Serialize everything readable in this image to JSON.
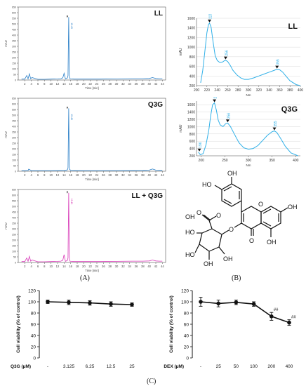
{
  "figure": {
    "panel_labels": {
      "A": "(A)",
      "B": "(B)",
      "C": "(C)"
    },
    "colors": {
      "hplc_trace": "#2a7fc8",
      "mix_trace": "#d83ab8",
      "uv_trace": "#2fb0e8",
      "axis": "#555555",
      "grid": "#d8d8d8",
      "bar": "#111111"
    }
  },
  "chart_data": [
    {
      "type": "line",
      "panel": "A",
      "title": "LL",
      "ylabel": "mAU",
      "xlabel": "Time [min]",
      "xlim": [
        0,
        45
      ],
      "ylim": [
        0,
        650
      ],
      "x_ticks": [
        "2",
        "4",
        "6",
        "8",
        "10",
        "12",
        "14",
        "16",
        "18",
        "20",
        "22",
        "24",
        "26",
        "28",
        "30",
        "32",
        "34",
        "36",
        "38",
        "40",
        "42",
        "44"
      ],
      "y_ticks": [
        "0",
        "50",
        "100",
        "150",
        "200",
        "250",
        "300",
        "350",
        "400",
        "450",
        "500",
        "550",
        "600",
        "650"
      ],
      "peak_label": "15.43",
      "series": [
        {
          "x": [
            1,
            2,
            2.6,
            3,
            3.4,
            3.8,
            4.2,
            6,
            8,
            10,
            12,
            13,
            13.6,
            14,
            14.4,
            15,
            15.2,
            15.4,
            15.6,
            15.8,
            16.2,
            17,
            20,
            25,
            30,
            35,
            38,
            40,
            41,
            42,
            43,
            44
          ],
          "y": [
            8,
            8,
            40,
            10,
            55,
            12,
            22,
            6,
            6,
            8,
            10,
            12,
            20,
            60,
            10,
            18,
            40,
            560,
            30,
            12,
            10,
            8,
            8,
            8,
            10,
            12,
            12,
            14,
            22,
            14,
            12,
            12
          ]
        }
      ]
    },
    {
      "type": "line",
      "panel": "A",
      "title": "Q3G",
      "ylabel": "mAU",
      "xlabel": "Time [min]",
      "xlim": [
        0,
        45
      ],
      "ylim": [
        0,
        650
      ],
      "x_ticks": [
        "2",
        "4",
        "6",
        "8",
        "10",
        "12",
        "14",
        "16",
        "18",
        "20",
        "22",
        "24",
        "26",
        "28",
        "30",
        "32",
        "34",
        "36",
        "38",
        "40",
        "42",
        "44"
      ],
      "y_ticks": [
        "0",
        "50",
        "100",
        "150",
        "200",
        "250",
        "300",
        "350",
        "400",
        "450",
        "500",
        "550",
        "600",
        "650"
      ],
      "peak_label": "15.43",
      "series": [
        {
          "x": [
            1,
            2,
            3,
            3.2,
            4,
            6,
            10,
            14,
            15,
            15.2,
            15.4,
            15.6,
            16,
            20,
            30,
            38,
            40,
            41,
            42,
            44
          ],
          "y": [
            6,
            6,
            6,
            18,
            6,
            6,
            6,
            8,
            12,
            30,
            560,
            20,
            8,
            6,
            6,
            8,
            10,
            20,
            10,
            8
          ]
        }
      ]
    },
    {
      "type": "line",
      "panel": "A",
      "title": "LL + Q3G",
      "ylabel": "mAU",
      "xlabel": "Time [min]",
      "xlim": [
        0,
        45
      ],
      "ylim": [
        0,
        650
      ],
      "x_ticks": [
        "2",
        "4",
        "6",
        "8",
        "10",
        "12",
        "14",
        "16",
        "18",
        "20",
        "22",
        "24",
        "26",
        "28",
        "30",
        "32",
        "34",
        "36",
        "38",
        "40",
        "42",
        "44"
      ],
      "y_ticks": [
        "0",
        "50",
        "100",
        "150",
        "200",
        "250",
        "300",
        "350",
        "400",
        "450",
        "500",
        "550",
        "600",
        "650"
      ],
      "peak_label": "15.43",
      "series": [
        {
          "x": [
            1,
            2,
            2.6,
            3,
            3.4,
            3.8,
            4.2,
            6,
            8,
            10,
            12,
            13,
            13.6,
            14,
            14.4,
            15,
            15.2,
            15.4,
            15.6,
            15.8,
            16.2,
            17,
            20,
            25,
            30,
            35,
            38,
            40,
            41,
            42,
            43,
            44
          ],
          "y": [
            8,
            8,
            40,
            10,
            55,
            12,
            22,
            6,
            6,
            8,
            10,
            12,
            20,
            70,
            10,
            18,
            40,
            620,
            30,
            12,
            10,
            8,
            8,
            8,
            10,
            12,
            12,
            14,
            22,
            14,
            12,
            12
          ]
        }
      ]
    },
    {
      "type": "line",
      "panel": "B",
      "title": "LL",
      "ylabel": "mAU",
      "xlabel": "Nm",
      "xlim": [
        200,
        400
      ],
      "ylim": [
        200,
        1600
      ],
      "x_ticks": [
        "200",
        "220",
        "240",
        "260",
        "280",
        "300",
        "320",
        "340",
        "360",
        "380",
        "400"
      ],
      "y_ticks": [
        "200",
        "400",
        "600",
        "800",
        "1000",
        "1200",
        "1400",
        "1600"
      ],
      "peak_labels": [
        {
          "x": 225,
          "label": "225"
        },
        {
          "x": 256,
          "label": "256"
        },
        {
          "x": 355,
          "label": "355"
        }
      ],
      "series": [
        {
          "x": [
            208,
            212,
            216,
            220,
            223,
            225,
            228,
            232,
            236,
            240,
            245,
            250,
            254,
            256,
            260,
            265,
            270,
            278,
            285,
            292,
            300,
            310,
            320,
            330,
            340,
            350,
            355,
            360,
            366,
            372,
            380,
            392,
            400
          ],
          "y": [
            260,
            520,
            900,
            1300,
            1470,
            1500,
            1420,
            1100,
            820,
            720,
            680,
            690,
            720,
            730,
            700,
            620,
            520,
            420,
            360,
            330,
            330,
            360,
            400,
            440,
            480,
            520,
            540,
            530,
            480,
            400,
            300,
            220,
            200
          ]
        }
      ]
    },
    {
      "type": "line",
      "panel": "B",
      "title": "Q3G",
      "ylabel": "mAU",
      "xlabel": "Nm",
      "xlim": [
        190,
        410
      ],
      "ylim": [
        200,
        1700
      ],
      "x_ticks": [
        "200",
        "250",
        "300",
        "350",
        "400"
      ],
      "y_ticks": [
        "200",
        "400",
        "600",
        "800",
        "1000",
        "1200",
        "1400",
        "1600"
      ],
      "peak_labels": [
        {
          "x": 196,
          "label": "196"
        },
        {
          "x": 228,
          "label": "228"
        },
        {
          "x": 256,
          "label": "256"
        },
        {
          "x": 355,
          "label": "355"
        }
      ],
      "series": [
        {
          "x": [
            194,
            198,
            204,
            210,
            216,
            220,
            224,
            228,
            232,
            236,
            240,
            246,
            252,
            256,
            262,
            270,
            280,
            290,
            300,
            310,
            320,
            330,
            340,
            350,
            355,
            360,
            368,
            378,
            390,
            405
          ],
          "y": [
            300,
            230,
            260,
            500,
            900,
            1300,
            1600,
            1650,
            1450,
            1180,
            1050,
            1000,
            1080,
            1100,
            1000,
            800,
            560,
            420,
            380,
            400,
            480,
            620,
            760,
            860,
            880,
            840,
            680,
            460,
            280,
            200
          ]
        }
      ]
    },
    {
      "type": "line",
      "panel": "C",
      "title": "",
      "ylabel": "Cell viability (% of control)",
      "xlabel": "Q3G (µM)",
      "categories": [
        "-",
        "3.125",
        "6.25",
        "12.5",
        "25"
      ],
      "ylim": [
        0,
        120
      ],
      "y_ticks": [
        "0",
        "20",
        "40",
        "60",
        "80",
        "100",
        "120"
      ],
      "series": [
        {
          "values": [
            100,
            99,
            98,
            96,
            95
          ],
          "errors": [
            3,
            4,
            4,
            4,
            3
          ]
        }
      ]
    },
    {
      "type": "line",
      "panel": "C",
      "title": "",
      "ylabel": "Cell viability (% of control)",
      "xlabel": "DEX (µM)",
      "categories": [
        "-",
        "25",
        "50",
        "100",
        "200",
        "400"
      ],
      "ylim": [
        0,
        120
      ],
      "y_ticks": [
        "0",
        "20",
        "40",
        "60",
        "80",
        "100",
        "120"
      ],
      "series": [
        {
          "values": [
            100,
            97,
            99,
            96,
            74,
            63
          ],
          "errors": [
            8,
            6,
            4,
            4,
            7,
            5
          ]
        }
      ],
      "annotations": [
        {
          "index": 4,
          "text": "##"
        },
        {
          "index": 5,
          "text": "##"
        }
      ]
    }
  ],
  "structure": {
    "substituents": [
      "HO",
      "OH",
      "OH",
      "OH",
      "OH",
      "OH",
      "HO",
      "HO",
      "OH"
    ],
    "ring_o": "O",
    "carbonyl_o": "O",
    "ether_o": "O",
    "sugar_o": "O",
    "acid_o": "O"
  }
}
